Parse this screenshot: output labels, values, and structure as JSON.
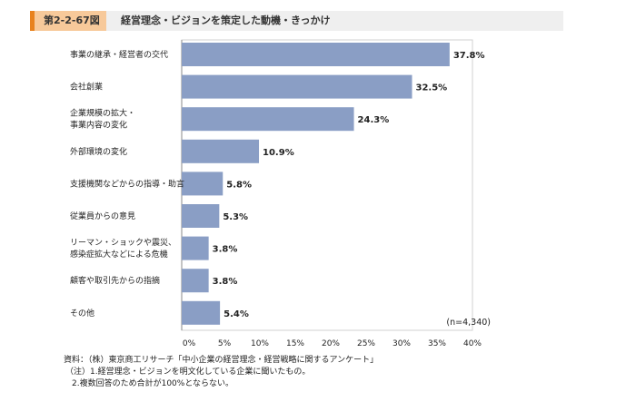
{
  "header": {
    "figure_id": "第2-2-67図",
    "title": "経営理念・ビジョンを策定した動機・きっかけ"
  },
  "chart_data": {
    "type": "bar",
    "orientation": "horizontal",
    "categories": [
      [
        "事業の継承・経営者の交代"
      ],
      [
        "会社創業"
      ],
      [
        "企業規模の拡大・",
        "事業内容の変化"
      ],
      [
        "外部環境の変化"
      ],
      [
        "支援機関などからの指導・助言"
      ],
      [
        "従業員からの意見"
      ],
      [
        "リーマン・ショックや震災、",
        "感染症拡大などによる危機"
      ],
      [
        "顧客や取引先からの指摘"
      ],
      [
        "その他"
      ]
    ],
    "values": [
      37.8,
      32.5,
      24.3,
      10.9,
      5.8,
      5.3,
      3.8,
      3.8,
      5.4
    ],
    "value_labels": [
      "37.8%",
      "32.5%",
      "24.3%",
      "10.9%",
      "5.8%",
      "5.3%",
      "3.8%",
      "3.8%",
      "5.4%"
    ],
    "xlim": [
      0,
      40
    ],
    "xticks": [
      0,
      5,
      10,
      15,
      20,
      25,
      30,
      35,
      40
    ],
    "xtick_labels": [
      "0%",
      "5%",
      "10%",
      "15%",
      "20%",
      "25%",
      "30%",
      "35%",
      "40%"
    ],
    "n_label": "(n=4,340)",
    "bar_color": "#8a9ec5",
    "grid": false
  },
  "notes": {
    "source": "資料：（株）東京商工リサーチ「中小企業の経営理念・経営戦略に関するアンケート」",
    "note1": "（注）1.経営理念・ビジョンを明文化している企業に聞いたもの。",
    "note2": "2.複数回答のため合計が100%とならない。"
  }
}
